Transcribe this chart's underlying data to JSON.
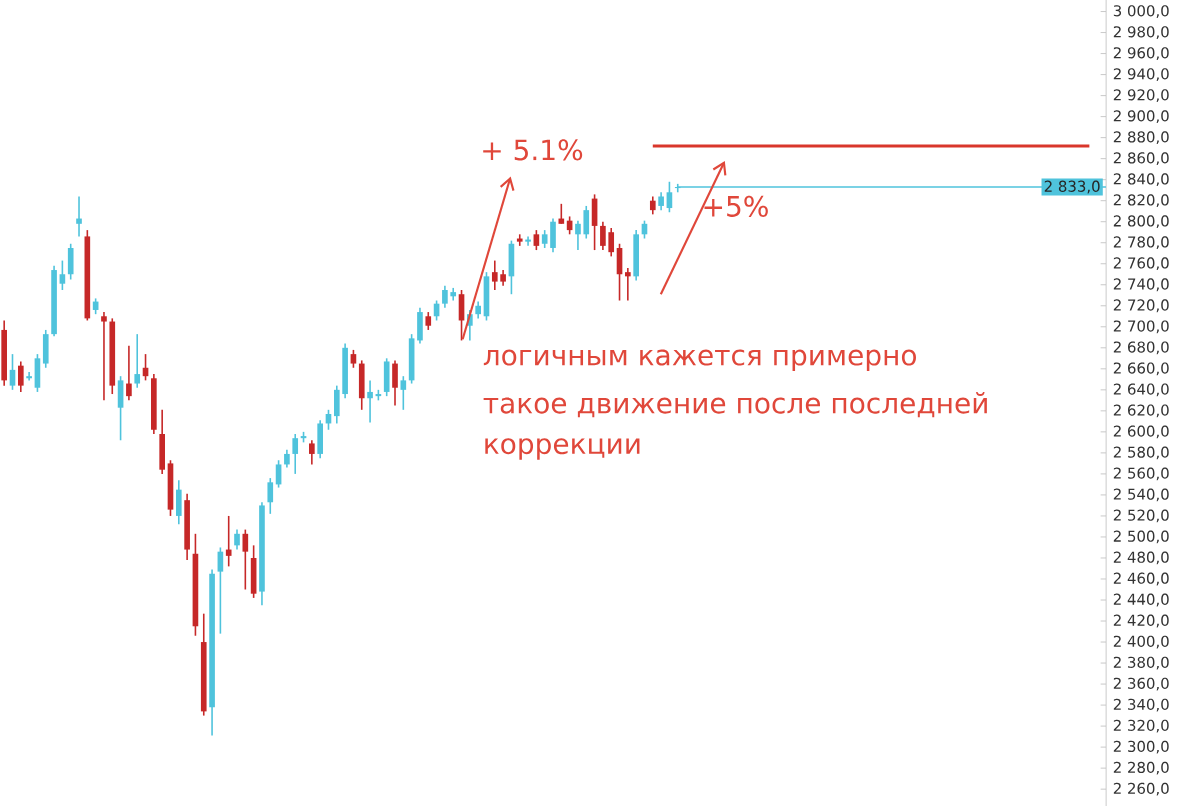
{
  "chart_data": {
    "type": "candlestick",
    "categories": [
      null,
      null,
      null,
      null,
      null,
      null,
      null,
      null,
      null,
      null,
      null,
      null,
      null,
      null,
      null,
      null,
      null,
      null,
      null,
      null,
      null,
      null,
      null,
      null,
      null,
      null,
      null,
      null,
      null,
      null,
      null,
      null,
      null,
      null,
      null,
      null,
      null,
      null,
      null,
      null,
      null,
      null,
      null,
      null,
      null,
      null,
      null,
      null,
      null,
      null,
      null,
      null,
      null,
      null,
      null,
      null,
      null,
      null,
      null,
      null,
      null,
      null,
      null,
      null,
      null,
      null,
      null,
      null,
      null,
      null,
      null,
      null,
      null,
      null,
      null,
      null,
      null,
      null,
      null,
      null,
      null,
      null,
      null,
      null,
      null,
      null,
      null,
      null,
      null,
      null,
      null,
      null,
      null,
      null,
      null,
      null,
      null,
      null,
      null,
      null,
      null,
      null,
      null,
      null,
      null,
      null,
      null,
      null,
      null,
      null,
      null,
      null,
      null,
      null,
      null,
      null,
      null,
      null,
      null,
      null,
      null,
      null,
      null,
      null,
      null,
      null,
      null,
      null,
      null,
      null,
      null,
      null,
      null
    ],
    "ohlc": [
      [
        2697,
        2706,
        2644,
        2649
      ],
      [
        2644,
        2674,
        2640,
        2659
      ],
      [
        2663,
        2667,
        2638,
        2644
      ],
      [
        2651,
        2657,
        2649,
        2653
      ],
      [
        2642,
        2674,
        2638,
        2670
      ],
      [
        2665,
        2697,
        2661,
        2693
      ],
      [
        2693,
        2758,
        2691,
        2754
      ],
      [
        2741,
        2763,
        2735,
        2750
      ],
      [
        2750,
        2779,
        2745,
        2775
      ],
      [
        2798,
        2824,
        2786,
        2803
      ],
      [
        2786,
        2792,
        2706,
        2708
      ],
      [
        2716,
        2727,
        2712,
        2724
      ],
      [
        2710,
        2714,
        2630,
        2705
      ],
      [
        2705,
        2708,
        2636,
        2644
      ],
      [
        2623,
        2653,
        2592,
        2649
      ],
      [
        2646,
        2682,
        2630,
        2634
      ],
      [
        2646,
        2693,
        2642,
        2655
      ],
      [
        2661,
        2674,
        2649,
        2653
      ],
      [
        2651,
        2655,
        2598,
        2602
      ],
      [
        2598,
        2621,
        2560,
        2564
      ],
      [
        2570,
        2573,
        2520,
        2526
      ],
      [
        2520,
        2554,
        2512,
        2545
      ],
      [
        2535,
        2541,
        2478,
        2488
      ],
      [
        2484,
        2503,
        2406,
        2415
      ],
      [
        2400,
        2427,
        2330,
        2334
      ],
      [
        2338,
        2469,
        2311,
        2465
      ],
      [
        2467,
        2490,
        2408,
        2486
      ],
      [
        2488,
        2520,
        2472,
        2482
      ],
      [
        2492,
        2507,
        2488,
        2503
      ],
      [
        2503,
        2507,
        2450,
        2486
      ],
      [
        2480,
        2492,
        2442,
        2446
      ],
      [
        2448,
        2533,
        2435,
        2530
      ],
      [
        2533,
        2556,
        2522,
        2552
      ],
      [
        2550,
        2573,
        2547,
        2569
      ],
      [
        2569,
        2583,
        2566,
        2579
      ],
      [
        2579,
        2598,
        2560,
        2594
      ],
      [
        2594,
        2600,
        2590,
        2596
      ],
      [
        2589,
        2592,
        2569,
        2579
      ],
      [
        2579,
        2611,
        2575,
        2608
      ],
      [
        2608,
        2621,
        2602,
        2617
      ],
      [
        2615,
        2644,
        2608,
        2640
      ],
      [
        2636,
        2684,
        2632,
        2680
      ],
      [
        2674,
        2678,
        2661,
        2665
      ],
      [
        2665,
        2668,
        2621,
        2632
      ],
      [
        2632,
        2649,
        2609,
        2638
      ],
      [
        2634,
        2640,
        2630,
        2636
      ],
      [
        2638,
        2670,
        2634,
        2667
      ],
      [
        2665,
        2668,
        2625,
        2642
      ],
      [
        2640,
        2653,
        2621,
        2649
      ],
      [
        2649,
        2693,
        2646,
        2689
      ],
      [
        2687,
        2718,
        2684,
        2714
      ],
      [
        2710,
        2714,
        2697,
        2701
      ],
      [
        2710,
        2725,
        2706,
        2722
      ],
      [
        2722,
        2739,
        2718,
        2735
      ],
      [
        2729,
        2737,
        2725,
        2733
      ],
      [
        2731,
        2735,
        2687,
        2706
      ],
      [
        2701,
        2716,
        2687,
        2712
      ],
      [
        2712,
        2724,
        2708,
        2720
      ],
      [
        2710,
        2752,
        2706,
        2748
      ],
      [
        2752,
        2763,
        2735,
        2743
      ],
      [
        2750,
        2754,
        2739,
        2743
      ],
      [
        2748,
        2782,
        2731,
        2779
      ],
      [
        2784,
        2788,
        2777,
        2781
      ],
      [
        2781,
        2786,
        2777,
        2783
      ],
      [
        2788,
        2792,
        2773,
        2777
      ],
      [
        2779,
        2792,
        2775,
        2788
      ],
      [
        2775,
        2803,
        2771,
        2800
      ],
      [
        2803,
        2817,
        2798,
        2798
      ],
      [
        2801,
        2805,
        2788,
        2792
      ],
      [
        2788,
        2801,
        2773,
        2798
      ],
      [
        2788,
        2815,
        2784,
        2811
      ],
      [
        2822,
        2826,
        2773,
        2796
      ],
      [
        2796,
        2800,
        2773,
        2777
      ],
      [
        2790,
        2794,
        2767,
        2771
      ],
      [
        2775,
        2779,
        2725,
        2750
      ],
      [
        2752,
        2756,
        2725,
        2748
      ],
      [
        2748,
        2792,
        2744,
        2788
      ],
      [
        2788,
        2801,
        2784,
        2798
      ],
      [
        2820,
        2824,
        2807,
        2811
      ],
      [
        2815,
        2828,
        2811,
        2824
      ],
      [
        2813,
        2838,
        2809,
        2828
      ],
      [
        2832,
        2836,
        2828,
        2833
      ],
      null,
      null,
      null,
      null,
      null,
      null,
      null,
      null,
      null,
      null,
      null,
      null,
      null,
      null,
      null,
      null,
      null,
      null,
      null,
      null,
      null,
      null,
      null,
      null,
      null,
      null,
      null,
      null,
      null,
      null,
      null,
      null,
      null,
      null,
      null,
      null,
      null,
      null,
      null,
      null,
      null,
      null,
      null,
      null,
      null,
      null,
      null,
      null,
      null,
      null,
      null
    ],
    "colors": [
      "#c62828",
      "#4fc3dc",
      "#c62828",
      "#4fc3dc",
      "#4fc3dc",
      "#4fc3dc",
      "#4fc3dc",
      "#4fc3dc",
      "#4fc3dc",
      "#4fc3dc",
      "#c62828",
      "#4fc3dc",
      "#c62828",
      "#c62828",
      "#4fc3dc",
      "#c62828",
      "#4fc3dc",
      "#c62828",
      "#c62828",
      "#c62828",
      "#c62828",
      "#4fc3dc",
      "#c62828",
      "#c62828",
      "#c62828",
      "#4fc3dc",
      "#4fc3dc",
      "#c62828",
      "#4fc3dc",
      "#c62828",
      "#c62828",
      "#4fc3dc",
      "#4fc3dc",
      "#4fc3dc",
      "#4fc3dc",
      "#4fc3dc",
      "#4fc3dc",
      "#c62828",
      "#4fc3dc",
      "#4fc3dc",
      "#4fc3dc",
      "#4fc3dc",
      "#c62828",
      "#c62828",
      "#4fc3dc",
      "#4fc3dc",
      "#4fc3dc",
      "#c62828",
      "#4fc3dc",
      "#4fc3dc",
      "#4fc3dc",
      "#c62828",
      "#4fc3dc",
      "#4fc3dc",
      "#4fc3dc",
      "#c62828",
      "#4fc3dc",
      "#4fc3dc",
      "#4fc3dc",
      "#c62828",
      "#c62828",
      "#4fc3dc",
      "#c62828",
      "#4fc3dc",
      "#c62828",
      "#4fc3dc",
      "#4fc3dc",
      "#c62828",
      "#c62828",
      "#4fc3dc",
      "#4fc3dc",
      "#c62828",
      "#c62828",
      "#c62828",
      "#c62828",
      "#c62828",
      "#4fc3dc",
      "#4fc3dc",
      "#c62828",
      "#4fc3dc",
      "#4fc3dc",
      "#4fc3dc",
      null,
      null,
      null,
      null,
      null,
      null,
      null,
      null,
      null,
      null,
      null,
      null,
      null,
      null,
      null,
      null,
      null,
      null,
      null,
      null,
      null,
      null,
      null,
      null,
      null,
      null,
      null,
      null,
      null,
      null,
      null,
      null,
      null,
      null,
      null,
      null,
      null,
      null,
      null,
      null,
      null,
      null,
      null,
      null,
      null,
      null,
      null,
      null,
      null,
      null,
      null
    ],
    "ylim": [
      2244,
      3011
    ],
    "yticks": [
      {
        "value": 2260,
        "label": "2 260,0"
      },
      {
        "value": 2280,
        "label": "2 280,0"
      },
      {
        "value": 2300,
        "label": "2 300,0"
      },
      {
        "value": 2320,
        "label": "2 320,0"
      },
      {
        "value": 2340,
        "label": "2 340,0"
      },
      {
        "value": 2360,
        "label": "2 360,0"
      },
      {
        "value": 2380,
        "label": "2 380,0"
      },
      {
        "value": 2400,
        "label": "2 400,0"
      },
      {
        "value": 2420,
        "label": "2 420,0"
      },
      {
        "value": 2440,
        "label": "2 440,0"
      },
      {
        "value": 2460,
        "label": "2 460,0"
      },
      {
        "value": 2480,
        "label": "2 480,0"
      },
      {
        "value": 2500,
        "label": "2 500,0"
      },
      {
        "value": 2520,
        "label": "2 520,0"
      },
      {
        "value": 2540,
        "label": "2 540,0"
      },
      {
        "value": 2560,
        "label": "2 560,0"
      },
      {
        "value": 2580,
        "label": "2 580,0"
      },
      {
        "value": 2600,
        "label": "2 600,0"
      },
      {
        "value": 2620,
        "label": "2 620,0"
      },
      {
        "value": 2640,
        "label": "2 640,0"
      },
      {
        "value": 2660,
        "label": "2 660,0"
      },
      {
        "value": 2680,
        "label": "2 680,0"
      },
      {
        "value": 2700,
        "label": "2 700,0"
      },
      {
        "value": 2720,
        "label": "2 720,0"
      },
      {
        "value": 2740,
        "label": "2 740,0"
      },
      {
        "value": 2760,
        "label": "2 760,0"
      },
      {
        "value": 2780,
        "label": "2 780,0"
      },
      {
        "value": 2800,
        "label": "2 800,0"
      },
      {
        "value": 2820,
        "label": "2 820,0"
      },
      {
        "value": 2840,
        "label": "2 840,0"
      },
      {
        "value": 2860,
        "label": "2 860,0"
      },
      {
        "value": 2880,
        "label": "2 880,0"
      },
      {
        "value": 2900,
        "label": "2 900,0"
      },
      {
        "value": 2920,
        "label": "2 920,0"
      },
      {
        "value": 2940,
        "label": "2 940,0"
      },
      {
        "value": 2960,
        "label": "2 960,0"
      },
      {
        "value": 2980,
        "label": "2 980,0"
      },
      {
        "value": 3000,
        "label": "3 000,0"
      }
    ],
    "tick_labels": "y",
    "ref_lines": [
      {
        "axis": "y",
        "value": 2833,
        "label": "2 833,0",
        "color": "#4fc3dc"
      },
      {
        "axis": "y",
        "value": 2872,
        "color": "#d9362b"
      }
    ],
    "annotations": [
      "+ 5.1%",
      "+5%",
      "логичным кажется примерно",
      "такое движение после последней",
      "коррекции"
    ]
  }
}
